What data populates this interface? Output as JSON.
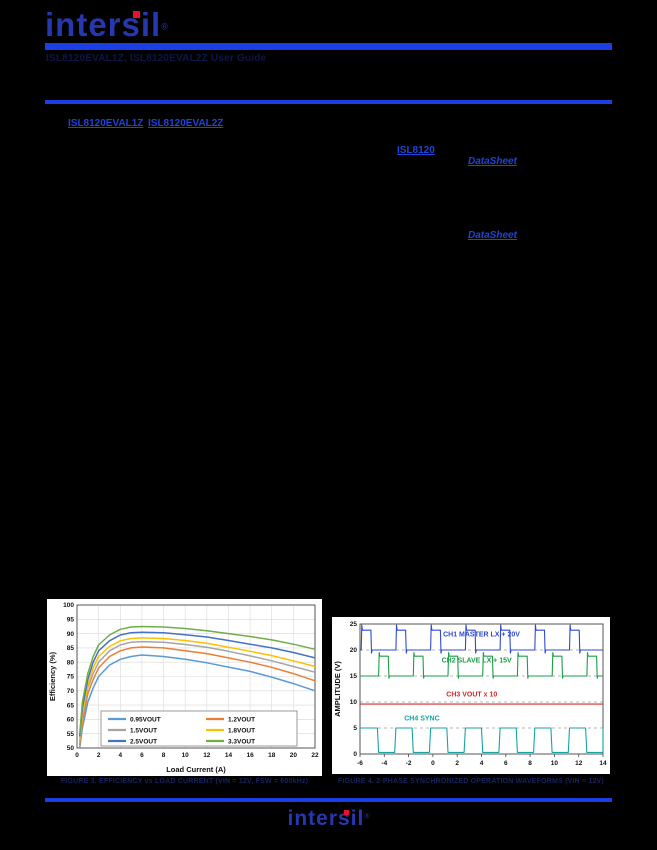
{
  "colors": {
    "page_bg": "#000000",
    "accent_blue": "#1c3fe3",
    "link_blue": "#1e44d8",
    "logo_navy": "#2638ad",
    "logo_red": "#e8112d",
    "caption_navy": "#17245e",
    "title_navy": "#0d1747"
  },
  "header": {
    "logo_text": "intersil",
    "registered_mark": "®",
    "doc_title": "ISL8120EVAL1Z, ISL8120EVAL2Z User Guide",
    "link_eval1": "ISL8120EVAL1Z",
    "link_eval2": "ISL8120EVAL2Z",
    "link_part": "ISL8120",
    "link_datasheet_top": "DataSheet",
    "link_datasheet_bottom": "DataSheet"
  },
  "footer": {
    "logo_text": "intersil",
    "registered_mark": "®"
  },
  "chart_data": [
    {
      "type": "line",
      "title": "FIGURE 3. EFFICIENCY vs LOAD CURRENT (VIN = 12V, FSW = 600kHz)",
      "xlabel": "Load Current (A)",
      "ylabel": "Efficiency (%)",
      "xlim": [
        0,
        22
      ],
      "ylim": [
        50,
        100
      ],
      "xticks": [
        0,
        2,
        4,
        6,
        8,
        10,
        12,
        14,
        16,
        18,
        20,
        22
      ],
      "yticks": [
        50,
        55,
        60,
        65,
        70,
        75,
        80,
        85,
        90,
        95,
        100
      ],
      "grid": true,
      "legend_position": "inside-bottom",
      "x": [
        0.25,
        0.5,
        1,
        1.5,
        2,
        3,
        4,
        5,
        6,
        8,
        10,
        12,
        14,
        16,
        18,
        20,
        22
      ],
      "series": [
        {
          "name": "0.95VOUT",
          "color": "#5B9BD5",
          "values": [
            50,
            57,
            66,
            71,
            75,
            79,
            81,
            82,
            82.5,
            82,
            81,
            79.8,
            78.3,
            76.8,
            74.8,
            72.5,
            70
          ]
        },
        {
          "name": "1.2VOUT",
          "color": "#ED7D31",
          "values": [
            51,
            59,
            69,
            74,
            78,
            82,
            84,
            85,
            85.3,
            85,
            84,
            83,
            81.5,
            80,
            78.2,
            76,
            73.5
          ]
        },
        {
          "name": "1.5VOUT",
          "color": "#A5A5A5",
          "values": [
            52,
            61,
            71,
            76,
            80,
            84,
            86,
            87,
            87.2,
            87,
            86.2,
            85.2,
            83.8,
            82.2,
            80.5,
            78.5,
            76.5
          ]
        },
        {
          "name": "1.8VOUT",
          "color": "#FFC000",
          "values": [
            53,
            62,
            72,
            78,
            82,
            85.5,
            87.5,
            88.3,
            88.5,
            88.3,
            87.6,
            86.6,
            85.2,
            83.8,
            82.3,
            80.5,
            78.5
          ]
        },
        {
          "name": "2.5VOUT",
          "color": "#4472C4",
          "values": [
            54,
            64,
            74,
            80,
            84,
            87.5,
            89.5,
            90.3,
            90.5,
            90.3,
            89.6,
            88.8,
            87.6,
            86.3,
            85,
            83.4,
            81.5
          ]
        },
        {
          "name": "3.3VOUT",
          "color": "#70AD47",
          "values": [
            55,
            66,
            76,
            82,
            86,
            89.5,
            91.5,
            92.3,
            92.5,
            92.3,
            91.8,
            91,
            90,
            89,
            87.8,
            86.3,
            84.5
          ]
        }
      ]
    },
    {
      "type": "scope",
      "title": "FIGURE 4. 2-PHASE SYNCHRONIZED OPERATION WAVEFORMS (VIN = 12V)",
      "xlabel": "",
      "ylabel": "AMPLITUDE (V)",
      "xlim": [
        -6,
        14
      ],
      "ylim": [
        0,
        25
      ],
      "xticks": [
        -6,
        -4,
        -2,
        0,
        2,
        4,
        6,
        8,
        10,
        12,
        14
      ],
      "yticks": [
        0,
        5,
        10,
        15,
        20,
        25
      ],
      "grid": "dashed-horizontal",
      "traces": [
        {
          "name": "CH1 MASTER LX + 20V",
          "color": "#2f49d1",
          "kind": "pulse",
          "period": 2.857,
          "duty": 0.28,
          "phase": -5.9,
          "low": 20,
          "high": 23.8,
          "spike": 1.0,
          "label_x": 4,
          "label_y": 22.6
        },
        {
          "name": "CH2 SLAVE LX + 15V",
          "color": "#1e9e48",
          "kind": "pulse",
          "period": 2.857,
          "duty": 0.28,
          "phase": -4.47,
          "low": 15,
          "high": 18.8,
          "spike": 0.7,
          "label_x": 3.6,
          "label_y": 17.6
        },
        {
          "name": "CH3 VOUT x 10",
          "color": "#d42a2a",
          "kind": "const",
          "value": 9.6,
          "label_x": 3.2,
          "label_y": 11.1
        },
        {
          "name": "CH4 SYNC",
          "color": "#17a3a3",
          "kind": "pulse",
          "period": 2.857,
          "duty": 0.5,
          "phase": -6,
          "low": 0.3,
          "high": 5,
          "spike": 0,
          "label_x": -0.9,
          "label_y": 6.4
        }
      ]
    }
  ]
}
